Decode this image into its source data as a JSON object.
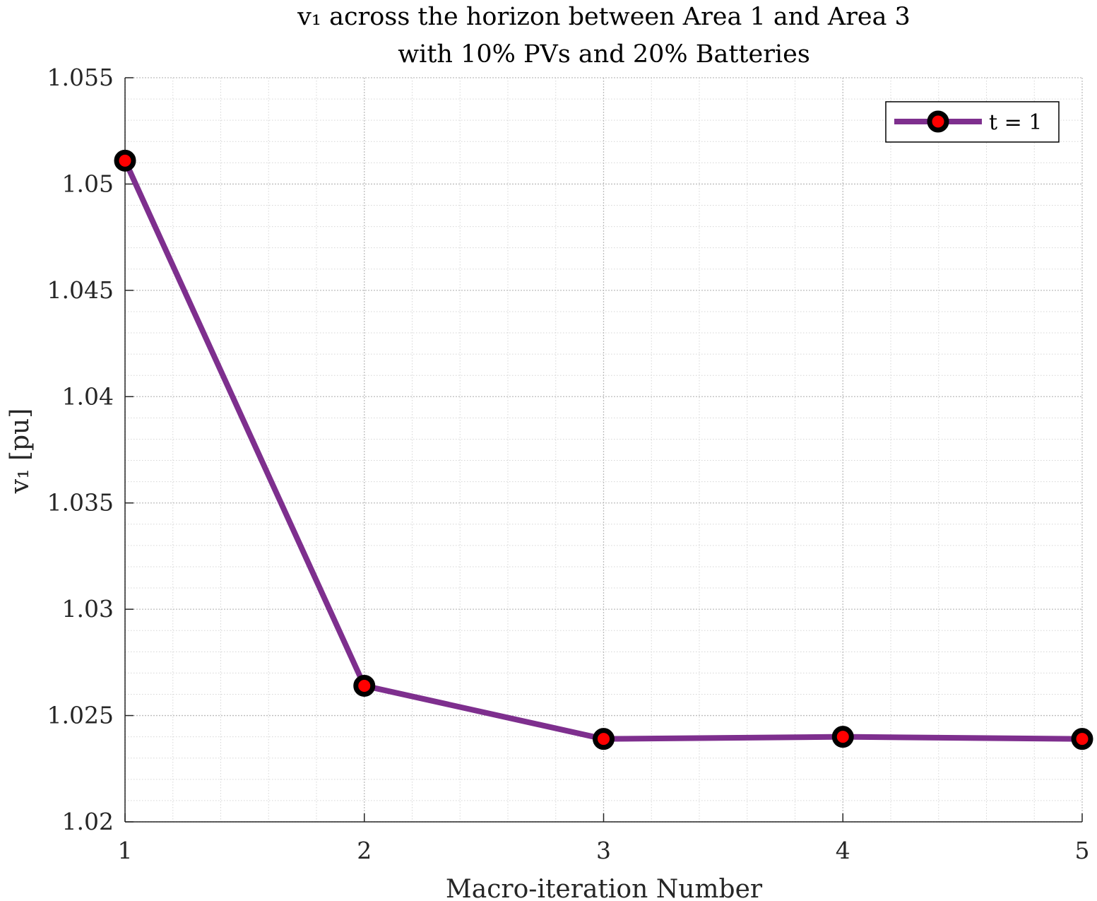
{
  "chart_data": {
    "type": "line",
    "title_line1": "v₁ across the horizon between Area 1 and Area 3",
    "title_line2": "with 10% PVs and 20% Batteries",
    "xlabel": "Macro-iteration Number",
    "ylabel": "v₁ [pu]",
    "x": [
      1,
      2,
      3,
      4,
      5
    ],
    "xlim": [
      1,
      5
    ],
    "ylim": [
      1.02,
      1.055
    ],
    "x_ticks": [
      "1",
      "2",
      "3",
      "4",
      "5"
    ],
    "y_ticks": [
      "1.02",
      "1.025",
      "1.03",
      "1.035",
      "1.04",
      "1.045",
      "1.05",
      "1.055"
    ],
    "grid": true,
    "minor_grid": true,
    "legend_position": "top-right",
    "series": [
      {
        "name": "t = 1",
        "values": [
          1.0511,
          1.0264,
          1.0239,
          1.024,
          1.0239
        ],
        "line_color": "#7E2F8E",
        "marker_edge_color": "#000000",
        "marker_face_color": "#FF0000"
      }
    ]
  }
}
